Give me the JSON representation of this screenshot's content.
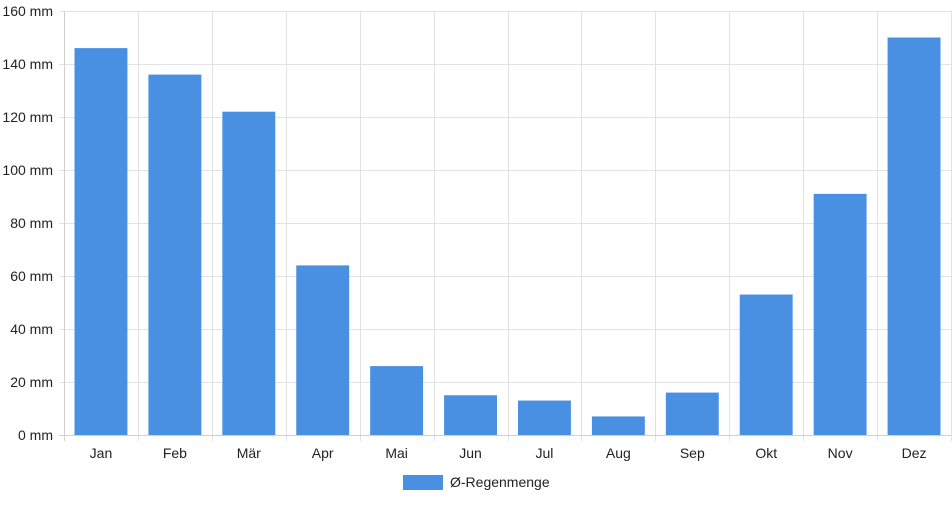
{
  "chart_data": {
    "type": "bar",
    "title": "",
    "xlabel": "",
    "ylabel": "",
    "categories": [
      "Jan",
      "Feb",
      "Mär",
      "Apr",
      "Mai",
      "Jun",
      "Jul",
      "Aug",
      "Sep",
      "Okt",
      "Nov",
      "Dez"
    ],
    "series": [
      {
        "name": "Ø-Regenmenge",
        "values": [
          146,
          136,
          122,
          64,
          26,
          15,
          13,
          7,
          16,
          53,
          91,
          150
        ],
        "color": "#4a90e2"
      }
    ],
    "y_ticks": [
      "0 mm",
      "20 mm",
      "40 mm",
      "60 mm",
      "80 mm",
      "100 mm",
      "120 mm",
      "140 mm",
      "160 mm"
    ],
    "ylim": [
      0,
      160
    ],
    "unit": "mm",
    "grid": true,
    "legend_position": "bottom-center"
  }
}
